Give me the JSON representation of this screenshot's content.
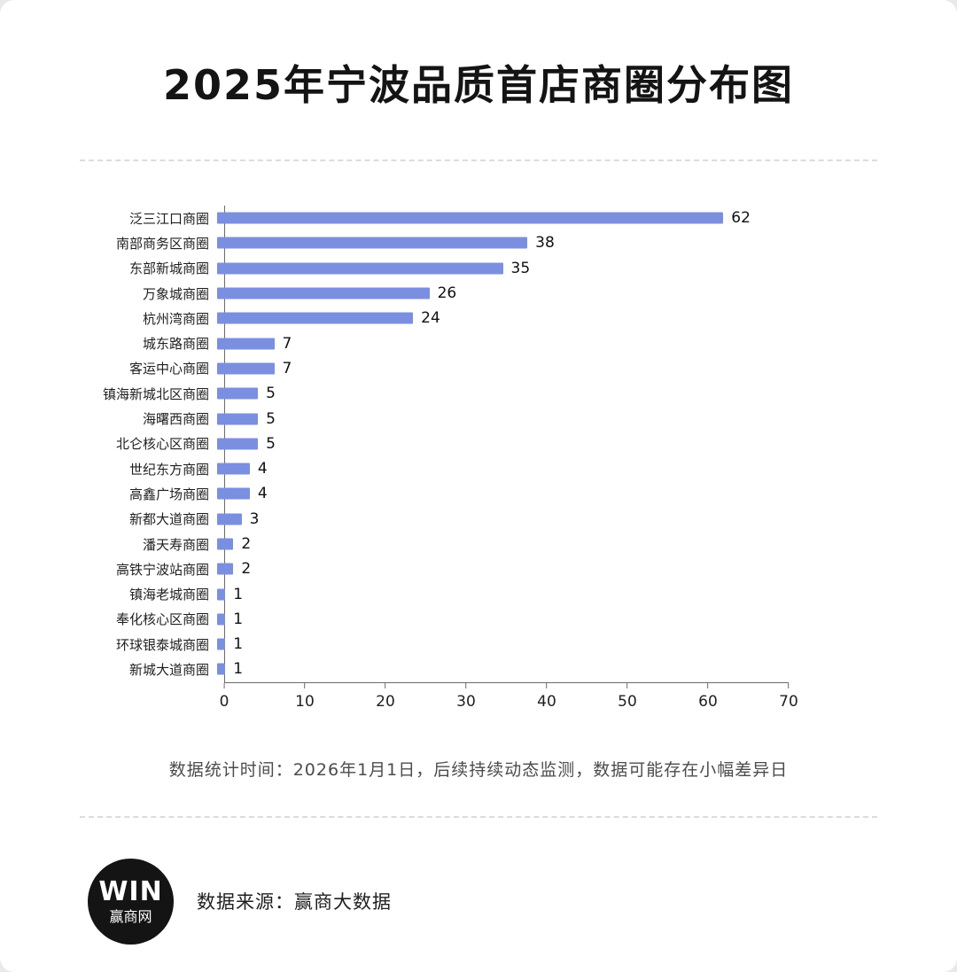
{
  "card": {
    "title": "2025年宁波品质首店商圈分布图",
    "footnote": "数据统计时间：2026年1月1日，后续持续动态监测，数据可能存在小幅差异日",
    "footer": {
      "logo_text": "WIN",
      "logo_subtext": "赢商网",
      "source": "数据来源：赢商大数据"
    }
  },
  "chart_data": {
    "type": "bar",
    "orientation": "horizontal",
    "title": "2025年宁波品质首店商圈分布图",
    "categories": [
      "泛三江口商圈",
      "南部商务区商圈",
      "东部新城商圈",
      "万象城商圈",
      "杭州湾商圈",
      "城东路商圈",
      "客运中心商圈",
      "镇海新城北区商圈",
      "海曙西商圈",
      "北仑核心区商圈",
      "世纪东方商圈",
      "高鑫广场商圈",
      "新都大道商圈",
      "潘天寿商圈",
      "高铁宁波站商圈",
      "镇海老城商圈",
      "奉化核心区商圈",
      "环球银泰城商圈",
      "新城大道商圈"
    ],
    "values": [
      62,
      38,
      35,
      26,
      24,
      7,
      7,
      5,
      5,
      5,
      4,
      4,
      3,
      2,
      2,
      1,
      1,
      1,
      1
    ],
    "xlabel": "",
    "ylabel": "",
    "xlim": [
      0,
      70
    ],
    "x_ticks": [
      0,
      10,
      20,
      30,
      40,
      50,
      60,
      70
    ],
    "bar_color": "#7b8fe0",
    "grid": false,
    "legend": false,
    "value_labels": true
  }
}
